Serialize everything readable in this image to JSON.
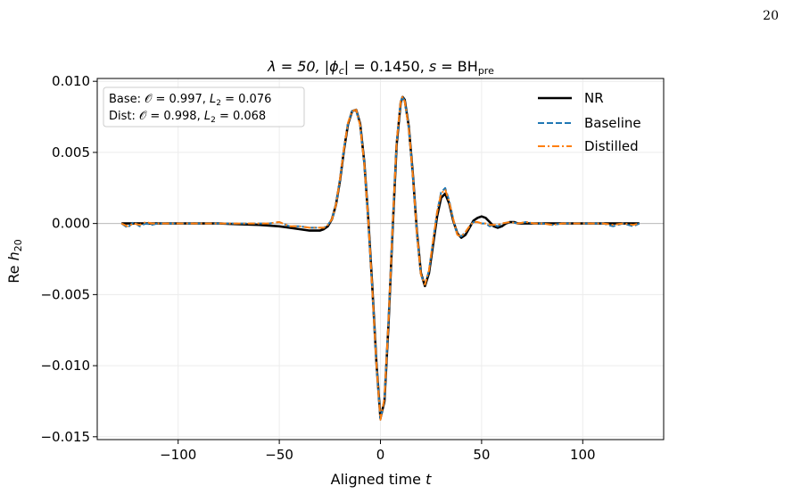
{
  "page": {
    "number": "20"
  },
  "chart_data": {
    "type": "line",
    "title": "λ = 50, |ϕc| = 0.1450, s = BHpre",
    "title_parts": {
      "lambda": "λ = 50, |",
      "phi": "ϕ",
      "phi_sub": "c",
      "mid": "| = 0.1450, ",
      "s": "s",
      "eq": " = BH",
      "s_sub": "pre"
    },
    "xlabel": "Aligned time t",
    "xlabel_parts": {
      "text": "Aligned time ",
      "var": "t"
    },
    "ylabel": "Re h20",
    "ylabel_parts": {
      "re": "Re ",
      "h": "h",
      "sub": "20"
    },
    "xlim": [
      -140,
      140
    ],
    "ylim": [
      -0.0152,
      0.0102
    ],
    "xticks": [
      -100,
      -50,
      0,
      50,
      100
    ],
    "xtick_labels": [
      "−100",
      "−50",
      "0",
      "50",
      "100"
    ],
    "yticks": [
      0.01,
      0.005,
      0.0,
      -0.005,
      -0.01,
      -0.015
    ],
    "ytick_labels": [
      "0.010",
      "0.005",
      "0.000",
      "−0.005",
      "−0.010",
      "−0.015"
    ],
    "grid": true,
    "legend_position": "top-right",
    "annotation": {
      "line1": "Base: 𝒪 = 0.997, L2 = 0.076",
      "line2": "Dist: 𝒪 = 0.998, L2 = 0.068",
      "line1_parts": {
        "a": "Base: 𝒪 = 0.997, ",
        "L": "L",
        "sub": "2",
        "b": " = 0.076"
      },
      "line2_parts": {
        "a": "Dist: 𝒪 = 0.998, ",
        "L": "L",
        "sub": "2",
        "b": " = 0.068"
      }
    },
    "series": [
      {
        "name": "NR",
        "color": "#000000",
        "style": "solid",
        "x": [
          -128,
          -120,
          -110,
          -100,
          -90,
          -80,
          -70,
          -60,
          -50,
          -45,
          -40,
          -35,
          -30,
          -28,
          -26,
          -24,
          -22,
          -20,
          -18,
          -16,
          -14,
          -12,
          -10,
          -8,
          -6,
          -4,
          -2,
          0,
          2,
          4,
          6,
          8,
          10,
          11,
          12,
          14,
          16,
          18,
          20,
          22,
          24,
          26,
          28,
          30,
          32,
          34,
          36,
          38,
          40,
          42,
          44,
          46,
          48,
          50,
          52,
          54,
          56,
          58,
          60,
          62,
          64,
          66,
          68,
          70,
          75,
          80,
          90,
          100,
          110,
          120,
          128
        ],
        "y": [
          0.0,
          0.0,
          0.0,
          0.0,
          0.0,
          0.0,
          -5e-05,
          -0.0001,
          -0.0002,
          -0.0003,
          -0.0004,
          -0.0005,
          -0.0005,
          -0.0004,
          -0.0002,
          0.0003,
          0.0013,
          0.003,
          0.0052,
          0.007,
          0.0079,
          0.008,
          0.007,
          0.0043,
          0.0003,
          -0.0045,
          -0.0098,
          -0.0137,
          -0.0125,
          -0.007,
          -0.0005,
          0.0055,
          0.0085,
          0.0089,
          0.0087,
          0.0068,
          0.0035,
          -0.0005,
          -0.0035,
          -0.0044,
          -0.0035,
          -0.0015,
          0.0005,
          0.0018,
          0.0021,
          0.0014,
          0.0002,
          -0.0007,
          -0.001,
          -0.0008,
          -0.0003,
          0.0002,
          0.0004,
          0.0005,
          0.0004,
          0.0001,
          -0.0002,
          -0.0003,
          -0.0002,
          0.0,
          0.0001,
          0.0001,
          0.0,
          0.0,
          0.0,
          0.0,
          0.0,
          0.0,
          0.0,
          0.0,
          0.0
        ]
      },
      {
        "name": "Baseline",
        "color": "#1f77b4",
        "style": "dashed",
        "x": [
          -128,
          -125,
          -122,
          -119,
          -116,
          -113,
          -110,
          -100,
          -90,
          -80,
          -70,
          -60,
          -55,
          -50,
          -45,
          -40,
          -35,
          -30,
          -28,
          -26,
          -24,
          -22,
          -20,
          -18,
          -16,
          -14,
          -12,
          -10,
          -8,
          -6,
          -4,
          -2,
          0,
          2,
          4,
          6,
          8,
          10,
          11,
          12,
          14,
          16,
          18,
          20,
          22,
          24,
          26,
          28,
          30,
          32,
          34,
          36,
          38,
          40,
          42,
          44,
          46,
          48,
          50,
          52,
          54,
          56,
          58,
          60,
          64,
          68,
          72,
          76,
          80,
          85,
          90,
          100,
          110,
          115,
          120,
          125,
          128
        ],
        "y": [
          0.0,
          -0.0003,
          0.0001,
          -0.0002,
          0.0,
          -0.0001,
          0.0,
          0.0,
          0.0,
          0.0,
          0.0,
          0.0,
          0.0,
          0.0001,
          -0.0002,
          -0.0002,
          -0.0003,
          -0.0003,
          -0.0003,
          -0.0001,
          0.0003,
          0.0013,
          0.0031,
          0.0053,
          0.0071,
          0.0079,
          0.008,
          0.0069,
          0.0042,
          0.0002,
          -0.0047,
          -0.0099,
          -0.0138,
          -0.0123,
          -0.0068,
          -0.0003,
          0.0057,
          0.0086,
          0.0089,
          0.0086,
          0.0067,
          0.0034,
          -0.0006,
          -0.0036,
          -0.0043,
          -0.0033,
          -0.0012,
          0.0008,
          0.0022,
          0.0025,
          0.0016,
          0.0003,
          -0.0008,
          -0.0009,
          -0.0006,
          -0.0002,
          0.0001,
          0.0001,
          0.0,
          0.0,
          -0.0002,
          -0.0001,
          -0.0002,
          0.0,
          0.0001,
          0.0,
          0.0001,
          0.0,
          0.0,
          -0.0001,
          0.0,
          0.0,
          0.0,
          -0.0002,
          0.0,
          -0.0002,
          0.0
        ]
      },
      {
        "name": "Distilled",
        "color": "#ff7f0e",
        "style": "dashdot",
        "x": [
          -128,
          -125,
          -122,
          -119,
          -116,
          -113,
          -110,
          -100,
          -90,
          -80,
          -70,
          -60,
          -55,
          -50,
          -45,
          -40,
          -35,
          -30,
          -28,
          -26,
          -24,
          -22,
          -20,
          -18,
          -16,
          -14,
          -12,
          -10,
          -8,
          -6,
          -4,
          -2,
          0,
          2,
          4,
          6,
          8,
          10,
          11,
          12,
          14,
          16,
          18,
          20,
          22,
          24,
          26,
          28,
          30,
          32,
          34,
          36,
          38,
          40,
          42,
          44,
          46,
          48,
          50,
          52,
          54,
          56,
          58,
          60,
          64,
          68,
          72,
          76,
          80,
          85,
          90,
          100,
          110,
          115,
          120,
          125,
          128
        ],
        "y": [
          0.0,
          -0.0002,
          0.0,
          -0.0001,
          0.0001,
          0.0,
          0.0,
          0.0,
          0.0,
          0.0,
          0.0,
          0.0,
          0.0,
          0.0001,
          -0.0002,
          -0.0002,
          -0.0003,
          -0.0003,
          -0.0003,
          -0.0001,
          0.0003,
          0.0013,
          0.0031,
          0.0053,
          0.0071,
          0.0079,
          0.008,
          0.0069,
          0.0042,
          0.0002,
          -0.0047,
          -0.0099,
          -0.0138,
          -0.0123,
          -0.0068,
          -0.0003,
          0.0057,
          0.0086,
          0.0089,
          0.0086,
          0.0067,
          0.0034,
          -0.0006,
          -0.0036,
          -0.0043,
          -0.0033,
          -0.0012,
          0.0008,
          0.0021,
          0.0024,
          0.0015,
          0.0003,
          -0.0008,
          -0.0009,
          -0.0006,
          -0.0002,
          0.0001,
          0.0001,
          0.0,
          0.0,
          -0.0001,
          -0.0001,
          -0.0001,
          0.0,
          0.0001,
          0.0,
          0.0001,
          0.0,
          0.0,
          -0.0001,
          0.0,
          0.0,
          0.0,
          -0.0001,
          0.0,
          -0.0001,
          0.0
        ]
      }
    ]
  }
}
